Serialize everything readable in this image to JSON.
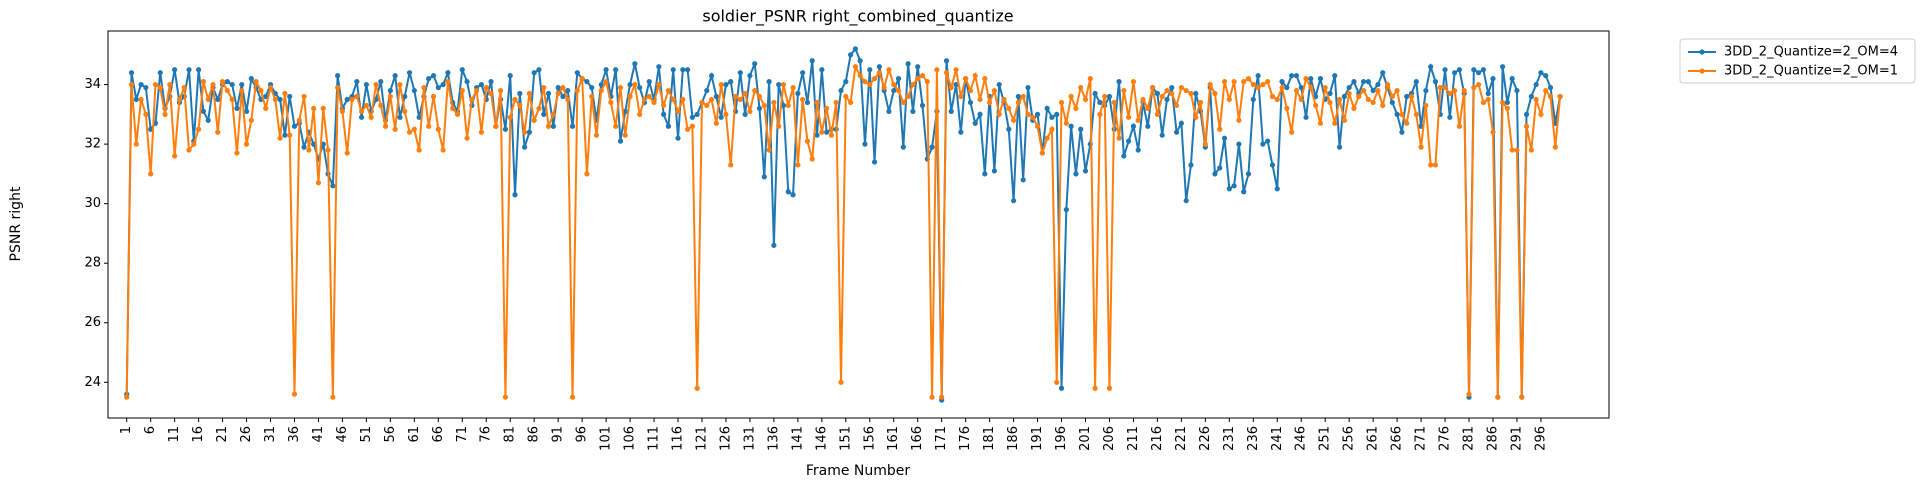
{
  "chart_data": {
    "type": "line",
    "title": "soldier_PSNR right_combined_quantize",
    "x_label": "Frame Number",
    "y_label": "PSNR right",
    "legend": "upper right",
    "x": [
      1,
      2,
      3,
      4,
      5,
      6,
      7,
      8,
      9,
      10,
      11,
      12,
      13,
      14,
      15,
      16,
      17,
      18,
      19,
      20,
      21,
      22,
      23,
      24,
      25,
      26,
      27,
      28,
      29,
      30,
      31,
      32,
      33,
      34,
      35,
      36,
      37,
      38,
      39,
      40,
      41,
      42,
      43,
      44,
      45,
      46,
      47,
      48,
      49,
      50,
      51,
      52,
      53,
      54,
      55,
      56,
      57,
      58,
      59,
      60,
      61,
      62,
      63,
      64,
      65,
      66,
      67,
      68,
      69,
      70,
      71,
      72,
      73,
      74,
      75,
      76,
      77,
      78,
      79,
      80,
      81,
      82,
      83,
      84,
      85,
      86,
      87,
      88,
      89,
      90,
      91,
      92,
      93,
      94,
      95,
      96,
      97,
      98,
      99,
      100,
      101,
      102,
      103,
      104,
      105,
      106,
      107,
      108,
      109,
      110,
      111,
      112,
      113,
      114,
      115,
      116,
      117,
      118,
      119,
      120,
      121,
      122,
      123,
      124,
      125,
      126,
      127,
      128,
      129,
      130,
      131,
      132,
      133,
      134,
      135,
      136,
      137,
      138,
      139,
      140,
      141,
      142,
      143,
      144,
      145,
      146,
      147,
      148,
      149,
      150,
      151,
      152,
      153,
      154,
      155,
      156,
      157,
      158,
      159,
      160,
      161,
      162,
      163,
      164,
      165,
      166,
      167,
      168,
      169,
      170,
      171,
      172,
      173,
      174,
      175,
      176,
      177,
      178,
      179,
      180,
      181,
      182,
      183,
      184,
      185,
      186,
      187,
      188,
      189,
      190,
      191,
      192,
      193,
      194,
      195,
      196,
      197,
      198,
      199,
      200,
      201,
      202,
      203,
      204,
      205,
      206,
      207,
      208,
      209,
      210,
      211,
      212,
      213,
      214,
      215,
      216,
      217,
      218,
      219,
      220,
      221,
      222,
      223,
      224,
      225,
      226,
      227,
      228,
      229,
      230,
      231,
      232,
      233,
      234,
      235,
      236,
      237,
      238,
      239,
      240,
      241,
      242,
      243,
      244,
      245,
      246,
      247,
      248,
      249,
      250,
      251,
      252,
      253,
      254,
      255,
      256,
      257,
      258,
      259,
      260,
      261,
      262,
      263,
      264,
      265,
      266,
      267,
      268,
      269,
      270,
      271,
      272,
      273,
      274,
      275,
      276,
      277,
      278,
      279,
      280,
      281,
      282,
      283,
      284,
      285,
      286,
      287,
      288,
      289,
      290,
      291,
      292,
      293,
      294,
      295,
      296,
      297,
      298,
      299,
      300
    ],
    "series": [
      {
        "name": "3DD_2_Quantize=2_OM=4",
        "color": "#1f77b4",
        "values": [
          23.6,
          34.4,
          33.5,
          34.0,
          33.9,
          32.5,
          32.7,
          34.4,
          33.2,
          33.6,
          34.5,
          33.4,
          33.6,
          34.5,
          32.1,
          34.5,
          33.1,
          32.8,
          33.9,
          33.5,
          34.0,
          34.1,
          34.0,
          33.2,
          34.0,
          33.1,
          34.2,
          33.9,
          33.5,
          33.6,
          34.0,
          33.7,
          33.5,
          32.3,
          33.6,
          32.6,
          32.7,
          31.9,
          32.4,
          32.0,
          31.5,
          32.0,
          31.0,
          30.6,
          34.3,
          33.2,
          33.5,
          33.6,
          34.1,
          32.9,
          34.0,
          33.1,
          33.5,
          34.1,
          32.8,
          33.8,
          34.3,
          32.9,
          33.6,
          34.4,
          33.8,
          32.9,
          33.6,
          34.2,
          34.3,
          33.9,
          34.0,
          34.4,
          33.4,
          33.1,
          34.5,
          34.1,
          33.3,
          33.9,
          34.0,
          33.5,
          34.1,
          32.6,
          33.5,
          32.5,
          34.3,
          30.3,
          33.7,
          31.9,
          32.4,
          34.4,
          34.5,
          33.0,
          33.7,
          32.6,
          33.9,
          33.6,
          33.8,
          32.6,
          34.4,
          34.2,
          34.1,
          33.9,
          32.8,
          34.0,
          34.5,
          33.6,
          34.5,
          32.1,
          33.1,
          34.0,
          34.7,
          33.9,
          33.4,
          34.1,
          33.5,
          34.6,
          33.0,
          32.6,
          34.5,
          32.2,
          34.5,
          34.5,
          32.9,
          33.0,
          33.4,
          33.8,
          34.3,
          33.6,
          32.9,
          34.0,
          34.1,
          33.1,
          34.4,
          33.0,
          34.3,
          34.7,
          33.2,
          30.9,
          34.1,
          28.6,
          34.0,
          33.3,
          30.4,
          30.3,
          33.7,
          34.4,
          33.4,
          34.8,
          32.3,
          34.5,
          32.4,
          32.5,
          32.5,
          33.8,
          34.1,
          35.0,
          35.2,
          34.8,
          32.0,
          34.5,
          31.4,
          34.6,
          33.8,
          33.1,
          33.8,
          34.2,
          31.9,
          34.7,
          33.1,
          34.6,
          33.3,
          31.5,
          31.9,
          33.1,
          23.4,
          34.8,
          33.1,
          34.0,
          32.4,
          34.2,
          33.4,
          32.7,
          33.0,
          31.0,
          33.6,
          31.1,
          34.0,
          33.4,
          32.5,
          30.1,
          33.6,
          30.8,
          33.9,
          32.8,
          33.0,
          31.7,
          33.2,
          32.9,
          33.0,
          23.8,
          29.8,
          32.6,
          31.0,
          32.5,
          31.1,
          32.0,
          33.7,
          33.4,
          33.3,
          33.6,
          32.5,
          34.1,
          31.6,
          32.1,
          32.6,
          31.8,
          33.4,
          32.6,
          33.9,
          33.7,
          32.3,
          33.5,
          33.9,
          32.4,
          32.7,
          30.1,
          31.3,
          33.7,
          33.1,
          31.9,
          33.9,
          31.0,
          31.2,
          32.2,
          30.5,
          30.6,
          32.0,
          30.4,
          31.0,
          33.5,
          34.3,
          32.0,
          32.1,
          31.3,
          30.5,
          34.1,
          33.9,
          34.3,
          34.3,
          33.9,
          32.9,
          34.2,
          33.6,
          34.2,
          33.5,
          33.7,
          34.3,
          31.9,
          33.6,
          33.9,
          34.1,
          33.7,
          34.1,
          34.1,
          33.8,
          34.0,
          34.4,
          33.9,
          33.4,
          33.0,
          32.4,
          33.6,
          33.7,
          34.1,
          32.6,
          33.8,
          34.6,
          34.1,
          33.0,
          34.5,
          32.9,
          34.4,
          34.5,
          33.7,
          23.5,
          34.5,
          34.4,
          34.5,
          33.7,
          34.2,
          23.5,
          34.6,
          33.4,
          34.2,
          33.8,
          23.5,
          33.0,
          33.6,
          34.0,
          34.4,
          34.3,
          33.9,
          32.7,
          33.6
        ]
      },
      {
        "name": "3DD_2_Quantize=2_OM=1",
        "color": "#ff7f0e",
        "values": [
          23.5,
          34.0,
          32.0,
          33.5,
          33.0,
          31.0,
          34.0,
          33.9,
          33.0,
          34.0,
          31.6,
          33.5,
          33.9,
          31.8,
          32.0,
          32.5,
          34.1,
          33.5,
          34.0,
          32.4,
          34.1,
          33.8,
          33.5,
          31.7,
          33.8,
          32.0,
          32.8,
          34.1,
          33.8,
          33.2,
          33.9,
          33.5,
          32.2,
          33.7,
          32.3,
          23.6,
          32.8,
          33.6,
          31.8,
          33.2,
          30.7,
          33.2,
          31.8,
          23.5,
          33.9,
          33.1,
          31.7,
          33.5,
          33.6,
          33.1,
          33.3,
          32.9,
          34.0,
          33.3,
          32.6,
          33.6,
          32.5,
          34.0,
          33.1,
          32.4,
          32.5,
          31.8,
          33.9,
          32.6,
          33.6,
          32.5,
          31.8,
          34.1,
          33.2,
          33.0,
          33.8,
          32.2,
          33.5,
          33.8,
          32.4,
          33.9,
          33.7,
          32.6,
          33.8,
          23.5,
          32.9,
          33.5,
          33.3,
          32.4,
          33.7,
          32.8,
          33.2,
          33.9,
          32.6,
          33.0,
          33.7,
          33.9,
          33.5,
          23.5,
          33.8,
          34.2,
          31.0,
          33.6,
          32.3,
          33.8,
          34.1,
          33.4,
          32.6,
          33.9,
          32.3,
          33.6,
          34.0,
          33.0,
          33.5,
          33.6,
          33.4,
          34.0,
          33.3,
          33.8,
          33.5,
          33.1,
          33.5,
          32.5,
          32.6,
          23.8,
          33.4,
          33.3,
          33.5,
          32.7,
          34.0,
          33.0,
          31.3,
          33.6,
          33.5,
          33.7,
          33.1,
          33.8,
          33.6,
          33.3,
          31.8,
          33.4,
          32.6,
          34.0,
          33.3,
          33.9,
          31.3,
          33.5,
          32.1,
          31.5,
          33.4,
          32.4,
          33.2,
          32.3,
          33.4,
          24.0,
          33.6,
          33.4,
          34.6,
          34.3,
          34.1,
          34.0,
          34.2,
          34.4,
          33.9,
          34.5,
          34.0,
          33.8,
          33.4,
          33.6,
          34.0,
          34.2,
          34.3,
          34.1,
          23.5,
          34.5,
          23.5,
          34.4,
          33.9,
          34.5,
          33.6,
          34.2,
          33.8,
          34.3,
          33.5,
          34.2,
          33.4,
          33.8,
          33.0,
          33.5,
          33.2,
          32.8,
          33.4,
          33.6,
          33.0,
          32.9,
          32.6,
          31.7,
          32.2,
          32.5,
          24.0,
          33.4,
          32.7,
          33.6,
          33.2,
          33.9,
          33.5,
          34.2,
          23.8,
          33.0,
          33.6,
          23.8,
          33.4,
          32.2,
          33.8,
          32.9,
          34.1,
          32.8,
          33.5,
          33.2,
          33.9,
          33.0,
          33.6,
          33.8,
          33.7,
          33.3,
          33.9,
          33.8,
          33.7,
          32.9,
          33.4,
          32.0,
          34.0,
          33.7,
          32.5,
          34.1,
          33.5,
          34.1,
          32.8,
          34.1,
          34.2,
          34.0,
          33.9,
          34.0,
          34.1,
          33.6,
          33.5,
          33.9,
          33.2,
          32.4,
          33.8,
          33.5,
          34.2,
          33.9,
          33.3,
          32.7,
          33.9,
          33.4,
          32.7,
          33.5,
          32.8,
          33.7,
          33.2,
          33.6,
          33.8,
          33.5,
          33.4,
          33.8,
          33.3,
          34.0,
          33.6,
          33.8,
          33.0,
          32.7,
          33.6,
          33.0,
          31.9,
          33.3,
          31.3,
          31.3,
          33.9,
          33.9,
          33.7,
          33.8,
          32.6,
          33.8,
          23.6,
          33.9,
          34.0,
          33.4,
          33.5,
          32.4,
          23.5,
          33.4,
          33.2,
          31.8,
          31.8,
          23.5,
          32.6,
          31.8,
          33.5,
          33.0,
          33.8,
          33.6,
          31.9,
          33.6
        ]
      }
    ],
    "xlim": [
      -2.9,
      310.2
    ],
    "xticks": [
      1,
      6,
      11,
      16,
      21,
      26,
      31,
      36,
      41,
      46,
      51,
      56,
      61,
      66,
      71,
      76,
      81,
      86,
      91,
      96,
      101,
      106,
      111,
      116,
      121,
      126,
      131,
      136,
      141,
      146,
      151,
      156,
      161,
      166,
      171,
      176,
      181,
      186,
      191,
      196,
      201,
      206,
      211,
      216,
      221,
      226,
      231,
      236,
      241,
      246,
      251,
      256,
      261,
      266,
      271,
      276,
      281,
      286,
      291,
      296
    ],
    "ylim": [
      22.8,
      35.8
    ],
    "yticks": [
      24,
      26,
      28,
      30,
      32,
      34
    ]
  }
}
